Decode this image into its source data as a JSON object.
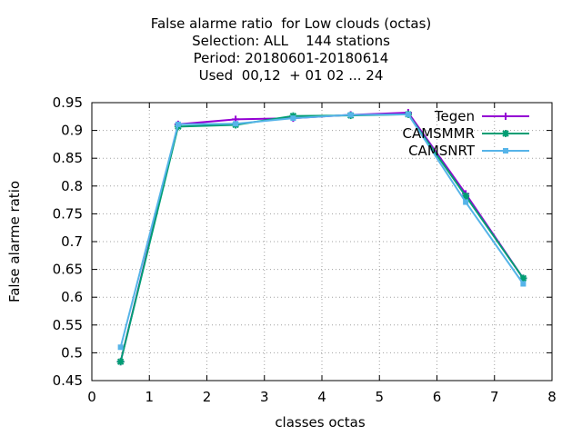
{
  "title_lines": [
    "False alarme ratio  for Low clouds (octas)",
    "Selection: ALL    144 stations",
    "Period: 20180601-20180614",
    "Used  00,12  + 01 02 ... 24"
  ],
  "chart_data": {
    "type": "line",
    "xlabel": "classes octas",
    "ylabel": "False alarme ratio",
    "xlim": [
      0,
      8
    ],
    "ylim": [
      0.45,
      0.95
    ],
    "xticks": [
      "0",
      "1",
      "2",
      "3",
      "4",
      "5",
      "6",
      "7",
      "8"
    ],
    "yticks": [
      "0.45",
      "0.5",
      "0.55",
      "0.6",
      "0.65",
      "0.7",
      "0.75",
      "0.8",
      "0.85",
      "0.9",
      "0.95"
    ],
    "grid": true,
    "legend_position": "top-right",
    "x": [
      0.5,
      1.5,
      2.5,
      3.5,
      4.5,
      5.5,
      6.5,
      7.5
    ],
    "series": [
      {
        "name": "Tegen",
        "color": "#9400d3",
        "marker": "plus",
        "values": [
          0.484,
          0.911,
          0.92,
          0.922,
          0.928,
          0.932,
          0.786,
          0.634
        ]
      },
      {
        "name": "CAMSMMR",
        "color": "#009e73",
        "marker": "star",
        "values": [
          0.484,
          0.907,
          0.91,
          0.926,
          0.927,
          0.929,
          0.782,
          0.634
        ]
      },
      {
        "name": "CAMSNRT",
        "color": "#56b4e9",
        "marker": "square",
        "values": [
          0.51,
          0.911,
          0.912,
          0.922,
          0.928,
          0.929,
          0.771,
          0.624
        ]
      }
    ]
  }
}
